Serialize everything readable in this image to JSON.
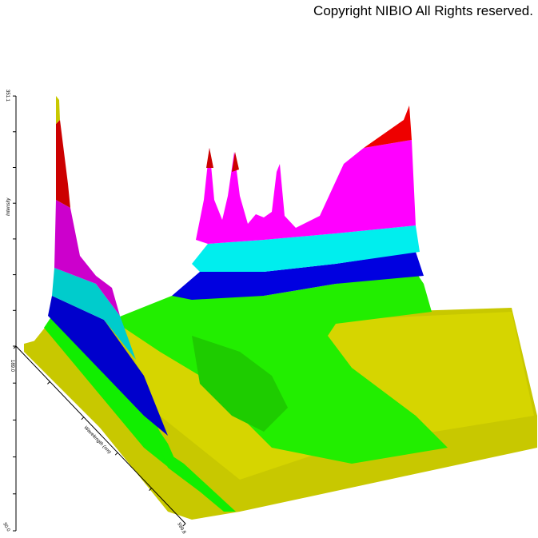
{
  "copyright": "Copyright NIBIO All Rights reserved.",
  "chart_data": {
    "type": "surface-3d",
    "title": "",
    "z_axis": {
      "label": "Intensity",
      "max_label": "351.1"
    },
    "y_axis": {
      "label": "Wavelength (nm)",
      "start_label": "189.0",
      "end_label": "599.8"
    },
    "x_axis": {
      "end_label": "50.0"
    },
    "color_bands": [
      "#cccc00",
      "#00ff00",
      "#0000dd",
      "#00dddd",
      "#ff00ff",
      "#cc00cc",
      "#dd0000"
    ]
  }
}
